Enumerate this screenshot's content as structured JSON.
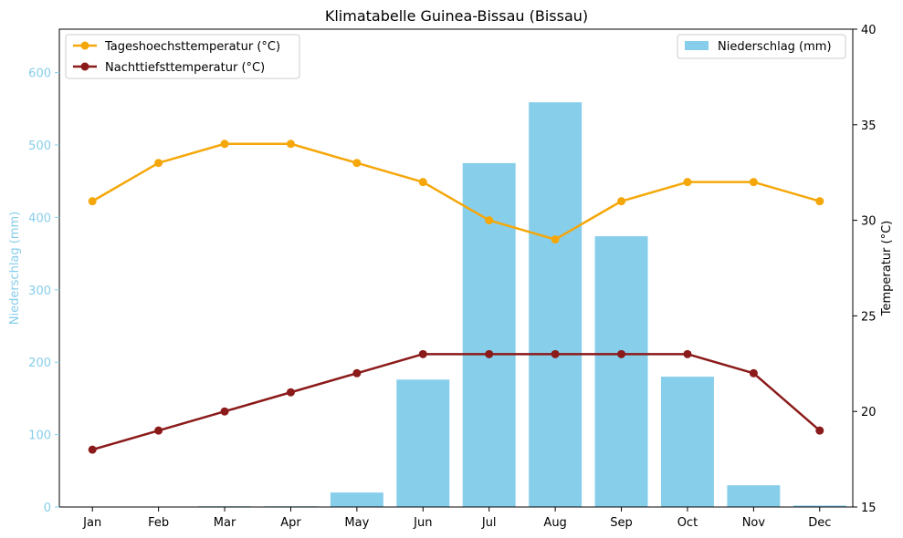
{
  "chart_data": {
    "type": "bar+line",
    "title": "Klimatabelle Guinea-Bissau (Bissau)",
    "categories": [
      "Jan",
      "Feb",
      "Mar",
      "Apr",
      "May",
      "Jun",
      "Jul",
      "Aug",
      "Sep",
      "Oct",
      "Nov",
      "Dec"
    ],
    "y_left": {
      "label": "Niederschlag (mm)",
      "lim": [
        0,
        660
      ],
      "ticks": [
        0,
        100,
        200,
        300,
        400,
        500,
        600
      ],
      "color": "#87CEEB"
    },
    "y_right": {
      "label": "Temperatur (°C)",
      "lim": [
        15,
        40
      ],
      "ticks": [
        15,
        20,
        25,
        30,
        35,
        40
      ],
      "color": "#000000"
    },
    "bars": {
      "name": "Niederschlag (mm)",
      "values": [
        0,
        0,
        1,
        1,
        20,
        176,
        475,
        559,
        374,
        180,
        30,
        2
      ],
      "color": "#87CEEB"
    },
    "lines": [
      {
        "name": "Tageshoechsttemperatur (°C)",
        "values": [
          31,
          33,
          34,
          34,
          33,
          32,
          30,
          29,
          31,
          32,
          32,
          31
        ],
        "color": "#F5A70A"
      },
      {
        "name": "Nachttiefsttemperatur (°C)",
        "values": [
          18,
          19,
          20,
          21,
          22,
          23,
          23,
          23,
          23,
          23,
          22,
          19
        ],
        "color": "#8B1A1A"
      }
    ],
    "legend_left_position": "top-left",
    "legend_right_position": "top-right",
    "grid": false
  }
}
